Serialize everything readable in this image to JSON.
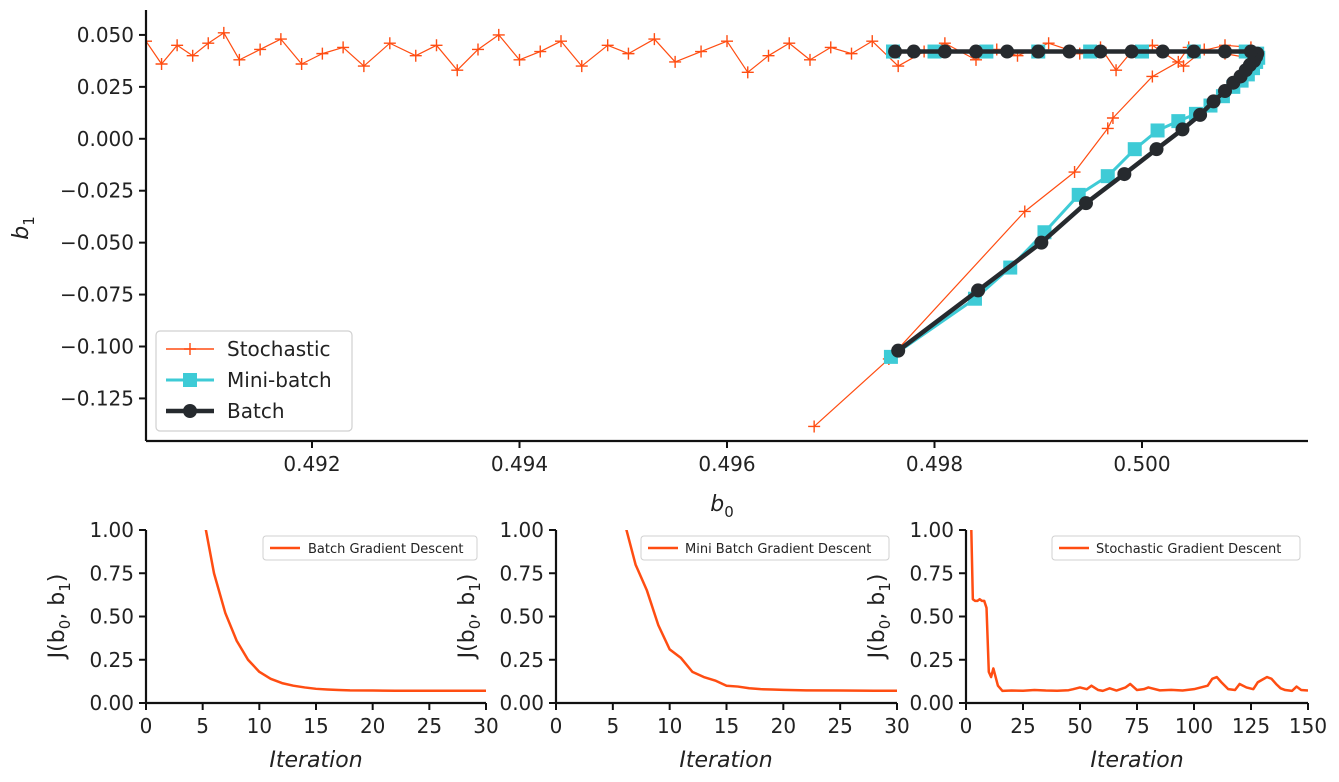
{
  "colors": {
    "stochastic": "#ff4d12",
    "minibatch": "#3ecbd6",
    "batch": "#262a2e",
    "axis": "#111111"
  },
  "chart_data": [
    {
      "type": "line",
      "xlabel": "b",
      "xlabel_sub": "0",
      "ylabel": "b",
      "ylabel_sub": "1",
      "xlim": [
        0.4904,
        0.5016
      ],
      "ylim": [
        -0.1455,
        0.062
      ],
      "xticks": [
        0.492,
        0.494,
        0.496,
        0.498,
        0.5
      ],
      "xtick_labels": [
        "0.492",
        "0.494",
        "0.496",
        "0.498",
        "0.500"
      ],
      "yticks": [
        0.05,
        0.025,
        0.0,
        -0.025,
        -0.05,
        -0.075,
        -0.1,
        -0.125
      ],
      "ytick_labels": [
        "0.050",
        "0.025",
        "0.000",
        "−0.025",
        "−0.050",
        "−0.075",
        "−0.100",
        "−0.125"
      ],
      "legend_position": "lower-left",
      "series": [
        {
          "name": "Stochastic",
          "marker": "plus",
          "x": [
            0.49684,
            0.49756,
            0.49887,
            0.49935,
            0.49967,
            0.49972,
            0.5001,
            0.50035,
            0.50045,
            0.50055,
            0.5008,
            0.50105,
            0.50102,
            0.5008,
            0.5006,
            0.5004,
            0.5001,
            0.4999,
            0.49975,
            0.4996,
            0.4994,
            0.4991,
            0.4988,
            0.4986,
            0.4984,
            0.4981,
            0.4979,
            0.49765,
            0.4974,
            0.4972,
            0.497,
            0.4968,
            0.4966,
            0.4964,
            0.4962,
            0.496,
            0.49575,
            0.4955,
            0.4953,
            0.49505,
            0.49485,
            0.4946,
            0.4944,
            0.4942,
            0.494,
            0.4938,
            0.4936,
            0.4934,
            0.4932,
            0.493,
            0.49275,
            0.4925,
            0.4923,
            0.4921,
            0.4919,
            0.4917,
            0.4915,
            0.4913,
            0.49115,
            0.491,
            0.49085,
            0.4907,
            0.49055,
            0.4904,
            0.49025,
            0.4901,
            0.48995,
            0.4899
          ],
          "y": [
            -0.1385,
            -0.106,
            -0.035,
            -0.016,
            0.005,
            0.01,
            0.03,
            0.037,
            0.044,
            0.042,
            0.045,
            0.044,
            0.039,
            0.041,
            0.043,
            0.035,
            0.045,
            0.042,
            0.033,
            0.044,
            0.041,
            0.046,
            0.04,
            0.043,
            0.038,
            0.046,
            0.042,
            0.035,
            0.047,
            0.041,
            0.044,
            0.038,
            0.046,
            0.04,
            0.032,
            0.047,
            0.042,
            0.037,
            0.048,
            0.041,
            0.045,
            0.035,
            0.047,
            0.042,
            0.038,
            0.05,
            0.043,
            0.033,
            0.045,
            0.04,
            0.046,
            0.035,
            0.044,
            0.041,
            0.036,
            0.048,
            0.043,
            0.038,
            0.051,
            0.046,
            0.04,
            0.045,
            0.036,
            0.047,
            0.042,
            0.038,
            0.045,
            0.033
          ]
        },
        {
          "name": "Mini-batch",
          "marker": "square",
          "x": [
            0.49758,
            0.49839,
            0.49873,
            0.49906,
            0.49939,
            0.49967,
            0.49993,
            0.50015,
            0.50035,
            0.50052,
            0.50066,
            0.50078,
            0.50088,
            0.50096,
            0.50102,
            0.50107,
            0.5011,
            0.50112,
            0.50111,
            0.501,
            0.5005,
            0.5,
            0.4995,
            0.499,
            0.4985,
            0.498,
            0.4976,
            0.4976
          ],
          "y": [
            -0.105,
            -0.077,
            -0.062,
            -0.045,
            -0.027,
            -0.018,
            -0.005,
            0.004,
            0.0085,
            0.012,
            0.016,
            0.0205,
            0.025,
            0.028,
            0.031,
            0.034,
            0.037,
            0.039,
            0.041,
            0.042,
            0.042,
            0.042,
            0.042,
            0.042,
            0.042,
            0.042,
            0.042,
            0.042
          ]
        },
        {
          "name": "Batch",
          "marker": "circle",
          "x": [
            0.49765,
            0.49842,
            0.49903,
            0.49946,
            0.49983,
            0.50014,
            0.50039,
            0.50056,
            0.50069,
            0.5008,
            0.50088,
            0.50095,
            0.501,
            0.50104,
            0.50108,
            0.5011,
            0.50111,
            0.50105,
            0.5008,
            0.5005,
            0.5002,
            0.4999,
            0.4996,
            0.4993,
            0.499,
            0.4987,
            0.4984,
            0.4981,
            0.4978,
            0.49762
          ],
          "y": [
            -0.102,
            -0.073,
            -0.05,
            -0.031,
            -0.017,
            -0.005,
            0.0045,
            0.0115,
            0.018,
            0.023,
            0.027,
            0.03,
            0.033,
            0.0355,
            0.0375,
            0.0395,
            0.041,
            0.042,
            0.042,
            0.042,
            0.042,
            0.042,
            0.042,
            0.042,
            0.042,
            0.042,
            0.042,
            0.042,
            0.042,
            0.042
          ]
        }
      ]
    },
    {
      "type": "line",
      "xlabel": "Iteration",
      "ylabel": "J(b",
      "ylabel_sub0": "0",
      "ylabel_mid": ", b",
      "ylabel_sub1": "1",
      "ylabel_end": ")",
      "xlim": [
        0,
        30
      ],
      "ylim": [
        0,
        1
      ],
      "xticks": [
        0,
        5,
        10,
        15,
        20,
        25,
        30
      ],
      "xtick_labels": [
        "0",
        "5",
        "10",
        "15",
        "20",
        "25",
        "30"
      ],
      "yticks": [
        0,
        0.25,
        0.5,
        0.75,
        1.0
      ],
      "ytick_labels": [
        "0.00",
        "0.25",
        "0.50",
        "0.75",
        "1.00"
      ],
      "legend_position": "upper-right",
      "series": [
        {
          "name": "Batch Gradient Descent",
          "x": [
            5,
            6,
            7,
            8,
            9,
            10,
            11,
            12,
            13,
            14,
            15,
            16,
            17,
            18,
            20,
            22,
            25,
            28,
            30
          ],
          "y": [
            1.1,
            0.75,
            0.52,
            0.36,
            0.25,
            0.18,
            0.14,
            0.115,
            0.1,
            0.09,
            0.082,
            0.078,
            0.075,
            0.073,
            0.072,
            0.071,
            0.071,
            0.071,
            0.071
          ]
        }
      ]
    },
    {
      "type": "line",
      "xlabel": "Iteration",
      "ylabel": "J(b",
      "ylabel_sub0": "0",
      "ylabel_mid": ", b",
      "ylabel_sub1": "1",
      "ylabel_end": ")",
      "xlim": [
        0,
        30
      ],
      "ylim": [
        0,
        1
      ],
      "xticks": [
        0,
        5,
        10,
        15,
        20,
        25,
        30
      ],
      "xtick_labels": [
        "0",
        "5",
        "10",
        "15",
        "20",
        "25",
        "30"
      ],
      "yticks": [
        0,
        0.25,
        0.5,
        0.75,
        1.0
      ],
      "ytick_labels": [
        "0.00",
        "0.25",
        "0.50",
        "0.75",
        "1.00"
      ],
      "legend_position": "upper-right",
      "series": [
        {
          "name": "Mini Batch Gradient Descent",
          "x": [
            6,
            7,
            8,
            9,
            10,
            11,
            12,
            13,
            14,
            15,
            16,
            17,
            18,
            19,
            20,
            22,
            25,
            28,
            30
          ],
          "y": [
            1.05,
            0.8,
            0.65,
            0.45,
            0.31,
            0.26,
            0.18,
            0.15,
            0.13,
            0.1,
            0.095,
            0.085,
            0.08,
            0.078,
            0.076,
            0.073,
            0.072,
            0.071,
            0.071
          ]
        }
      ]
    },
    {
      "type": "line",
      "xlabel": "Iteration",
      "ylabel": "J(b",
      "ylabel_sub0": "0",
      "ylabel_mid": ", b",
      "ylabel_sub1": "1",
      "ylabel_end": ")",
      "xlim": [
        0,
        150
      ],
      "ylim": [
        0,
        1
      ],
      "xticks": [
        0,
        25,
        50,
        75,
        100,
        125,
        150
      ],
      "xtick_labels": [
        "0",
        "25",
        "50",
        "75",
        "100",
        "125",
        "150"
      ],
      "yticks": [
        0,
        0.25,
        0.5,
        0.75,
        1.0
      ],
      "ytick_labels": [
        "0.00",
        "0.25",
        "0.50",
        "0.75",
        "1.00"
      ],
      "legend_position": "upper-right",
      "series": [
        {
          "name": "Stochastic Gradient Descent",
          "x": [
            2,
            3,
            4,
            5,
            6,
            7,
            8,
            9,
            10,
            11,
            12,
            14,
            16,
            20,
            25,
            30,
            35,
            40,
            45,
            47,
            50,
            53,
            55,
            58,
            60,
            63,
            66,
            70,
            72,
            75,
            78,
            80,
            85,
            90,
            95,
            100,
            103,
            106,
            108,
            110,
            112,
            115,
            118,
            120,
            123,
            126,
            128,
            130,
            132,
            134,
            136,
            138,
            140,
            143,
            145,
            147,
            150
          ],
          "y": [
            1.2,
            0.6,
            0.59,
            0.59,
            0.6,
            0.59,
            0.59,
            0.55,
            0.18,
            0.15,
            0.2,
            0.1,
            0.07,
            0.072,
            0.071,
            0.075,
            0.072,
            0.071,
            0.074,
            0.08,
            0.09,
            0.08,
            0.1,
            0.075,
            0.07,
            0.085,
            0.072,
            0.09,
            0.11,
            0.075,
            0.08,
            0.09,
            0.073,
            0.076,
            0.072,
            0.08,
            0.09,
            0.1,
            0.14,
            0.15,
            0.12,
            0.08,
            0.075,
            0.11,
            0.09,
            0.08,
            0.12,
            0.135,
            0.15,
            0.14,
            0.11,
            0.085,
            0.075,
            0.07,
            0.095,
            0.075,
            0.072
          ]
        }
      ]
    }
  ]
}
